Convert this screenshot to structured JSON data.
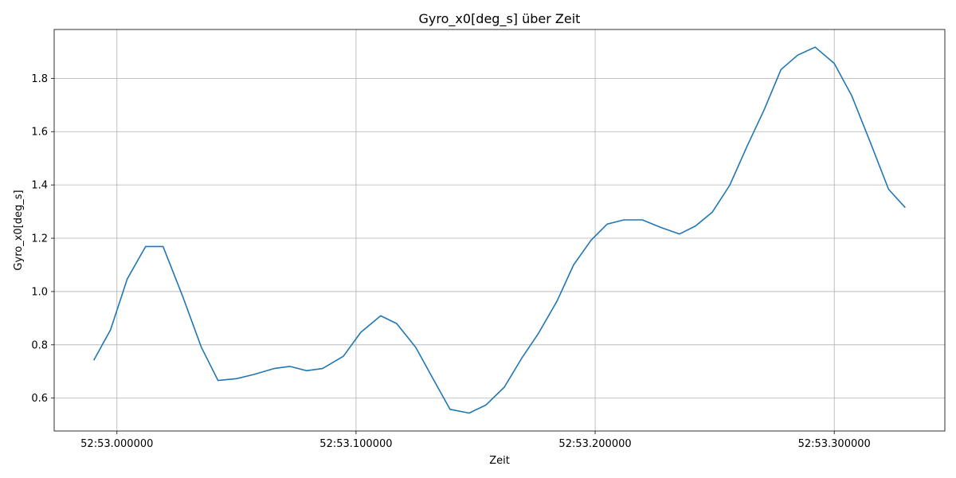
{
  "chart_data": {
    "type": "line",
    "title": "Gyro_x0[deg_s] über Zeit",
    "xlabel": "Zeit",
    "ylabel": "Gyro_x0[deg_s]",
    "grid": true,
    "x_unit": "seconds within 52:53",
    "xlim": [
      52.97375,
      53.34625
    ],
    "ylim": [
      0.4766,
      1.9834
    ],
    "xticks": [
      {
        "value": 53.0,
        "label": "52:53.000000"
      },
      {
        "value": 53.1,
        "label": "52:53.100000"
      },
      {
        "value": 53.2,
        "label": "52:53.200000"
      },
      {
        "value": 53.3,
        "label": "52:53.300000"
      }
    ],
    "yticks": [
      {
        "value": 0.6,
        "label": "0.6"
      },
      {
        "value": 0.8,
        "label": "0.8"
      },
      {
        "value": 1.0,
        "label": "1.0"
      },
      {
        "value": 1.2,
        "label": "1.2"
      },
      {
        "value": 1.4,
        "label": "1.4"
      },
      {
        "value": 1.6,
        "label": "1.6"
      },
      {
        "value": 1.8,
        "label": "1.8"
      }
    ],
    "series": [
      {
        "color": "#1f77b4",
        "x": [
          52.9903,
          52.9973,
          53.0043,
          53.012,
          53.0193,
          53.0277,
          53.0353,
          53.0423,
          53.05,
          53.0573,
          53.0657,
          53.0723,
          53.0793,
          53.086,
          53.0947,
          53.102,
          53.1103,
          53.117,
          53.125,
          53.1323,
          53.1393,
          53.1473,
          53.1543,
          53.162,
          53.1693,
          53.1763,
          53.184,
          53.191,
          53.1983,
          53.205,
          53.212,
          53.2197,
          53.2277,
          53.2353,
          53.242,
          53.249,
          53.2563,
          53.2637,
          53.2707,
          53.2777,
          53.2847,
          53.292,
          53.3,
          53.3073,
          53.3153,
          53.3227,
          53.3297
        ],
        "y": [
          0.742,
          0.856,
          1.047,
          1.169,
          1.169,
          0.977,
          0.791,
          0.666,
          0.673,
          0.689,
          0.711,
          0.719,
          0.703,
          0.711,
          0.757,
          0.847,
          0.909,
          0.88,
          0.79,
          0.671,
          0.558,
          0.544,
          0.574,
          0.641,
          0.75,
          0.843,
          0.963,
          1.1,
          1.193,
          1.253,
          1.269,
          1.269,
          1.24,
          1.216,
          1.246,
          1.298,
          1.399,
          1.548,
          1.682,
          1.833,
          1.887,
          1.917,
          1.856,
          1.735,
          1.555,
          1.384,
          1.315
        ]
      }
    ]
  }
}
